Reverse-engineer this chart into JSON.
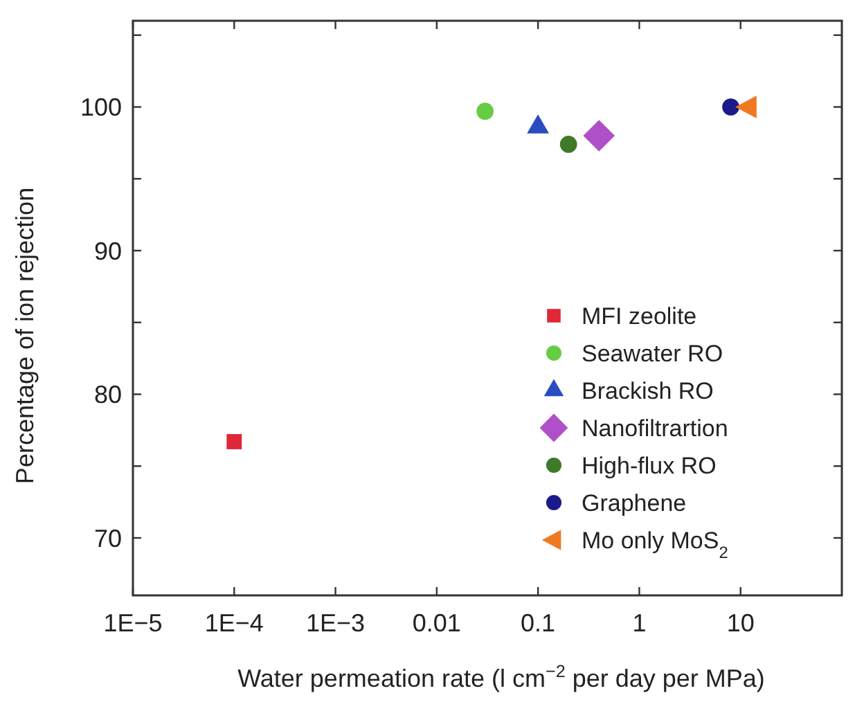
{
  "chart_data": {
    "type": "scatter",
    "xlabel": "Water permeation rate (l cm$^{−2}$ per day per MPa)",
    "ylabel": "Percentage of ion rejection",
    "log": "x",
    "xlim": [
      1e-05,
      100
    ],
    "ylim": [
      66,
      106
    ],
    "xticks": [
      {
        "value": 1e-05,
        "label": "1E−5"
      },
      {
        "value": 0.0001,
        "label": "1E−4"
      },
      {
        "value": 0.001,
        "label": "1E−3"
      },
      0.01,
      0.1,
      1,
      10
    ],
    "yticks": [
      70,
      {
        "value": 75,
        "label": null
      },
      80,
      {
        "value": 85,
        "label": null
      },
      90,
      {
        "value": 95,
        "label": null
      },
      100,
      {
        "value": 105,
        "label": null
      }
    ],
    "grid": false,
    "legend": "bottom right",
    "series": [
      {
        "name": "MFI zeolite",
        "color": "#e02838",
        "marker": "square",
        "x": [
          0.0001
        ],
        "values": [
          76.7
        ]
      },
      {
        "name": "Seawater RO",
        "color": "#66cc44",
        "marker": "circle",
        "x": [
          0.03
        ],
        "values": [
          99.7
        ]
      },
      {
        "name": "Brackish RO",
        "color": "#2a4cc0",
        "marker": "triangle",
        "x": [
          0.1
        ],
        "values": [
          98.6
        ]
      },
      {
        "name": "Nanofiltrartion",
        "color": "#b050c8",
        "marker": "diamond",
        "x": [
          0.4
        ],
        "values": [
          98
        ]
      },
      {
        "name": "High-flux RO",
        "color": "#3e7a28",
        "marker": "circle",
        "x": [
          0.2
        ],
        "values": [
          97.4
        ]
      },
      {
        "name": "Graphene",
        "color": "#1a1a8a",
        "marker": "circle",
        "x": [
          8
        ],
        "values": [
          100
        ]
      },
      {
        "name": "Mo only MoS$_{2}$",
        "color": "#f07820",
        "marker": "triangle-left",
        "x": [
          12
        ],
        "values": [
          100
        ]
      }
    ]
  }
}
